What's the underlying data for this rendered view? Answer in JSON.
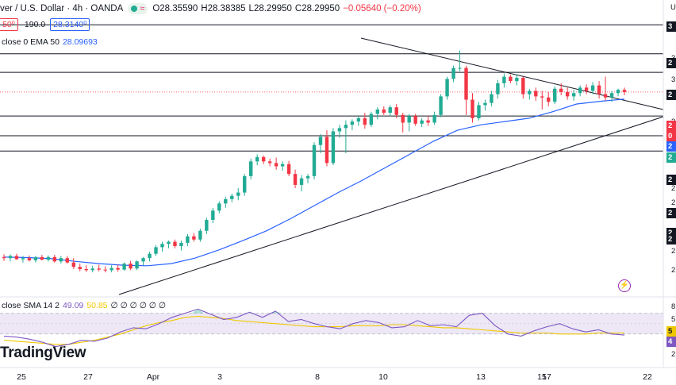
{
  "header": {
    "symbol_text": "ver / U.S. Dollar · 4h · OANDA",
    "wave_glyph": "≈",
    "open": "O28.35590",
    "high": "H28.38385",
    "low": "L28.29950",
    "close": "C28.29950",
    "change": "−0.05640 (−0.20%)"
  },
  "trade_row": {
    "sell_price": "50⁰",
    "spread": "190.0",
    "buy_price": "28.3140⁰"
  },
  "ema": {
    "label": "close 0 EMA 50",
    "value": "28.09693"
  },
  "rsi": {
    "label": "close SMA 14 2",
    "rsi_value": "49.09",
    "sma_value": "50.85",
    "zeros": "∅ ∅ ∅ ∅ ∅ ∅"
  },
  "branding": {
    "logo_text": "TradingView"
  },
  "right_axis": {
    "top_letter": "U",
    "labels": [
      "3",
      "3",
      "2",
      "2",
      "2",
      "2",
      "2",
      "2",
      "2",
      "2",
      "2",
      "2",
      "2",
      "2"
    ],
    "tags": [
      {
        "text": "3",
        "bg": "#131722"
      },
      {
        "text": "2",
        "bg": "#131722"
      },
      {
        "text": "2",
        "bg": "#131722"
      },
      {
        "text": "2",
        "bg": "#f23645"
      },
      {
        "text": "0",
        "bg": "#f23645"
      },
      {
        "text": "2",
        "bg": "#2962ff"
      },
      {
        "text": "2",
        "bg": "#22ab94"
      },
      {
        "text": "2",
        "bg": "#131722"
      },
      {
        "text": "2",
        "bg": "#131722"
      },
      {
        "text": "2",
        "bg": "#131722"
      },
      {
        "text": "2",
        "bg": "#131722"
      }
    ],
    "rsi_labels": [
      "8",
      "5",
      "5",
      "4",
      "2"
    ]
  },
  "x_axis": {
    "labels": [
      "25",
      "27",
      "Apr",
      "3",
      "8",
      "10",
      "13",
      "15",
      "17",
      "22"
    ]
  },
  "colors": {
    "up": "#22ab94",
    "down": "#f23645",
    "ema": "#2962ff",
    "rsi": "#7e57c2",
    "rsi_sma": "#f0c800",
    "rsi_band": "#ede7f6",
    "support_resistance": "#131722",
    "trendline": "#131722"
  },
  "chart_data": {
    "type": "candlestick",
    "symbol": "Silver / U.S. Dollar",
    "timeframe": "4h",
    "source": "OANDA",
    "price_range": [
      24.5,
      29.7
    ],
    "horizontal_levels": [
      29.45,
      28.92,
      28.58,
      27.78,
      27.42,
      27.14
    ],
    "candles": [
      [
        25.2,
        25.25,
        25.13,
        25.18
      ],
      [
        25.18,
        25.25,
        25.12,
        25.22
      ],
      [
        25.22,
        25.26,
        25.15,
        25.16
      ],
      [
        25.16,
        25.22,
        25.1,
        25.18
      ],
      [
        25.18,
        25.23,
        25.12,
        25.14
      ],
      [
        25.14,
        25.22,
        25.1,
        25.2
      ],
      [
        25.2,
        25.24,
        25.14,
        25.15
      ],
      [
        25.15,
        25.23,
        25.12,
        25.2
      ],
      [
        25.2,
        25.24,
        25.1,
        25.12
      ],
      [
        25.12,
        25.22,
        25.08,
        25.18
      ],
      [
        25.18,
        25.22,
        25.08,
        25.1
      ],
      [
        25.1,
        25.18,
        24.98,
        25.02
      ],
      [
        25.02,
        25.08,
        24.94,
        24.98
      ],
      [
        24.98,
        25.05,
        24.93,
        24.96
      ],
      [
        24.96,
        25.04,
        24.92,
        24.99
      ],
      [
        24.99,
        25.06,
        24.94,
        24.97
      ],
      [
        24.97,
        25.03,
        24.92,
        24.96
      ],
      [
        24.96,
        25.05,
        24.92,
        25.0
      ],
      [
        25.0,
        25.06,
        24.93,
        24.97
      ],
      [
        24.97,
        25.1,
        24.95,
        25.08
      ],
      [
        25.08,
        25.13,
        24.96,
        24.99
      ],
      [
        24.99,
        25.14,
        24.96,
        25.12
      ],
      [
        25.12,
        25.2,
        25.05,
        25.18
      ],
      [
        25.18,
        25.3,
        25.12,
        25.26
      ],
      [
        25.26,
        25.42,
        25.22,
        25.38
      ],
      [
        25.38,
        25.48,
        25.3,
        25.44
      ],
      [
        25.44,
        25.5,
        25.36,
        25.48
      ],
      [
        25.48,
        25.52,
        25.36,
        25.4
      ],
      [
        25.4,
        25.5,
        25.32,
        25.46
      ],
      [
        25.46,
        25.62,
        25.4,
        25.58
      ],
      [
        25.58,
        25.64,
        25.48,
        25.52
      ],
      [
        25.52,
        25.72,
        25.48,
        25.68
      ],
      [
        25.68,
        25.92,
        25.62,
        25.88
      ],
      [
        25.88,
        26.1,
        25.82,
        26.05
      ],
      [
        26.05,
        26.22,
        26.0,
        26.18
      ],
      [
        26.18,
        26.3,
        26.1,
        26.26
      ],
      [
        26.26,
        26.36,
        26.2,
        26.32
      ],
      [
        26.32,
        26.46,
        26.24,
        26.38
      ],
      [
        26.38,
        26.72,
        26.32,
        26.68
      ],
      [
        26.68,
        27.0,
        26.62,
        26.95
      ],
      [
        26.95,
        27.08,
        26.88,
        27.03
      ],
      [
        27.03,
        27.06,
        26.9,
        26.95
      ],
      [
        26.95,
        27.0,
        26.86,
        26.92
      ],
      [
        26.92,
        27.02,
        26.8,
        26.86
      ],
      [
        26.86,
        26.95,
        26.78,
        26.9
      ],
      [
        26.9,
        26.96,
        26.68,
        26.72
      ],
      [
        26.72,
        26.8,
        26.46,
        26.52
      ],
      [
        26.52,
        26.7,
        26.4,
        26.64
      ],
      [
        26.64,
        26.72,
        26.55,
        26.68
      ],
      [
        26.68,
        27.3,
        26.62,
        27.25
      ],
      [
        27.25,
        27.45,
        27.1,
        27.4
      ],
      [
        27.4,
        27.52,
        26.86,
        26.92
      ],
      [
        26.92,
        27.56,
        26.88,
        27.5
      ],
      [
        27.5,
        27.62,
        27.38,
        27.56
      ],
      [
        27.56,
        27.7,
        27.1,
        27.62
      ],
      [
        27.62,
        27.72,
        27.52,
        27.68
      ],
      [
        27.68,
        27.78,
        27.6,
        27.74
      ],
      [
        27.74,
        27.84,
        27.55,
        27.62
      ],
      [
        27.62,
        27.86,
        27.58,
        27.82
      ],
      [
        27.82,
        27.94,
        27.72,
        27.9
      ],
      [
        27.9,
        27.96,
        27.8,
        27.84
      ],
      [
        27.84,
        27.98,
        27.78,
        27.94
      ],
      [
        27.94,
        28.0,
        27.74,
        27.8
      ],
      [
        27.8,
        27.84,
        27.48,
        27.66
      ],
      [
        27.66,
        27.82,
        27.5,
        27.78
      ],
      [
        27.78,
        27.82,
        27.6,
        27.64
      ],
      [
        27.64,
        27.74,
        27.58,
        27.7
      ],
      [
        27.7,
        27.78,
        27.6,
        27.66
      ],
      [
        27.66,
        27.86,
        27.62,
        27.8
      ],
      [
        27.8,
        28.18,
        27.76,
        28.14
      ],
      [
        28.14,
        28.5,
        28.08,
        28.46
      ],
      [
        28.46,
        28.7,
        28.4,
        28.66
      ],
      [
        28.66,
        28.98,
        28.6,
        28.66
      ],
      [
        28.66,
        28.7,
        27.8,
        28.08
      ],
      [
        28.08,
        28.2,
        27.66,
        27.74
      ],
      [
        27.74,
        28.04,
        27.7,
        27.98
      ],
      [
        27.98,
        28.08,
        27.88,
        28.02
      ],
      [
        28.02,
        28.24,
        27.96,
        28.18
      ],
      [
        28.18,
        28.44,
        28.1,
        28.38
      ],
      [
        28.38,
        28.56,
        28.3,
        28.5
      ],
      [
        28.5,
        28.54,
        28.38,
        28.42
      ],
      [
        28.42,
        28.54,
        28.34,
        28.48
      ],
      [
        28.48,
        28.5,
        28.1,
        28.18
      ],
      [
        28.18,
        28.28,
        28.08,
        28.24
      ],
      [
        28.24,
        28.3,
        28.06,
        28.14
      ],
      [
        28.14,
        28.24,
        27.9,
        28.12
      ],
      [
        28.12,
        28.22,
        27.96,
        28.04
      ],
      [
        28.04,
        28.32,
        28.0,
        28.28
      ],
      [
        28.28,
        28.38,
        28.16,
        28.22
      ],
      [
        28.22,
        28.3,
        28.08,
        28.14
      ],
      [
        28.14,
        28.26,
        28.06,
        28.2
      ],
      [
        28.2,
        28.34,
        28.14,
        28.3
      ],
      [
        28.3,
        28.36,
        28.18,
        28.24
      ],
      [
        28.24,
        28.4,
        28.18,
        28.34
      ],
      [
        28.34,
        28.42,
        28.1,
        28.18
      ],
      [
        28.18,
        28.5,
        28.06,
        28.12
      ],
      [
        28.12,
        28.24,
        28.04,
        28.2
      ],
      [
        28.2,
        28.28,
        28.14,
        28.26
      ],
      [
        28.26,
        28.3,
        28.16,
        28.22
      ]
    ],
    "ema50": [
      25.2,
      25.19,
      25.17,
      25.12,
      25.08,
      25.05,
      25.04,
      25.08,
      25.18,
      25.33,
      25.5,
      25.68,
      25.9,
      26.14,
      26.38,
      26.6,
      26.84,
      27.08,
      27.32,
      27.52,
      27.62,
      27.68,
      27.74,
      27.86,
      28.0,
      28.05,
      28.09
    ],
    "rsi": [
      48,
      47,
      45,
      42,
      38,
      40,
      44,
      43,
      46,
      52,
      56,
      55,
      60,
      66,
      70,
      74,
      69,
      64,
      66,
      71,
      66,
      72,
      62,
      64,
      60,
      57,
      55,
      60,
      63,
      61,
      56,
      57,
      63,
      58,
      59,
      57,
      68,
      70,
      58,
      50,
      48,
      53,
      57,
      60,
      55,
      52,
      54,
      50,
      49
    ],
    "rsi_sma": [
      44,
      43,
      42,
      41,
      40,
      40,
      42,
      44,
      47,
      50,
      54,
      58,
      61,
      63,
      66,
      67,
      66,
      65,
      63,
      62,
      61,
      60,
      59,
      58,
      57,
      57,
      57,
      58,
      58,
      58,
      59,
      59,
      58,
      57,
      56,
      56,
      55,
      54,
      53,
      52,
      51,
      51,
      51,
      50,
      50,
      50,
      51,
      51,
      51
    ],
    "rsi_range": [
      20,
      85
    ],
    "rsi_band": [
      50,
      70
    ]
  }
}
